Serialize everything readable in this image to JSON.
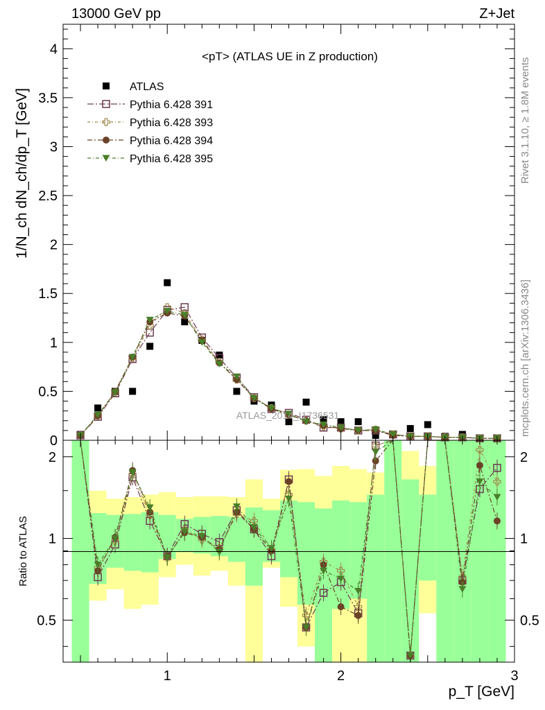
{
  "header": {
    "left": "13000 GeV pp",
    "right": "Z+Jet"
  },
  "side": {
    "rivet": "Rivet 3.1.10, ≥ 1.8M events",
    "source": "mcplots.cern.ch [arXiv:1306.3436]"
  },
  "watermark": "ATLAS_2014_I1736531",
  "chart_data": {
    "type": "scatter",
    "title": "<pT> (ATLAS UE in Z production)",
    "xlabel": "p_T [GeV]",
    "ylabel": "1/N_ch dN_ch/dp_T [GeV]",
    "ratio_ylabel": "Ratio to ATLAS",
    "xlim": [
      0.4,
      3.0
    ],
    "ylim": [
      0,
      4.25
    ],
    "ratio_ylim": [
      0.35,
      2.3
    ],
    "grid": false,
    "legend": "top-left",
    "x_ticks": [
      "1",
      "2",
      "3"
    ],
    "y_ticks": [
      "0",
      "0.5",
      "1",
      "1.5",
      "2",
      "2.5",
      "3",
      "3.5",
      "4"
    ],
    "ratio_ticks": [
      "0.5",
      "1",
      "2"
    ],
    "x": [
      0.5,
      0.6,
      0.7,
      0.8,
      0.9,
      1.0,
      1.1,
      1.2,
      1.3,
      1.4,
      1.5,
      1.6,
      1.7,
      1.8,
      1.9,
      2.0,
      2.1,
      2.2,
      2.3,
      2.4,
      2.5,
      2.6,
      2.7,
      2.8,
      2.9
    ],
    "series": [
      {
        "name": "ATLAS",
        "color": "#000000",
        "marker": "square-filled",
        "values": [
          0.06,
          0.33,
          0.5,
          0.5,
          0.96,
          1.61,
          1.21,
          1.02,
          0.87,
          0.5,
          0.4,
          0.36,
          0.19,
          0.39,
          0.21,
          0.19,
          0.19,
          0.05,
          0.06,
          0.12,
          0.16,
          0.04,
          0.06,
          0.02,
          0.02
        ]
      },
      {
        "name": "Pythia 6.428 391",
        "color": "#6b3a4f",
        "marker": "square-open",
        "values": [
          0.05,
          0.24,
          0.48,
          0.83,
          1.1,
          1.33,
          1.36,
          1.05,
          0.84,
          0.64,
          0.44,
          0.32,
          0.28,
          0.21,
          0.13,
          0.13,
          0.1,
          0.1,
          0.06,
          0.04,
          0.04,
          0.03,
          0.03,
          0.02,
          0.02
        ],
        "ratio": [
          2.6,
          0.72,
          0.95,
          1.68,
          1.16,
          0.86,
          1.13,
          1.04,
          0.97,
          1.27,
          1.08,
          0.86,
          1.65,
          0.47,
          0.63,
          0.69,
          0.53,
          2.2,
          2.6,
          0.37,
          2.6,
          2.6,
          0.7,
          1.52,
          1.82
        ]
      },
      {
        "name": "Pythia 6.428 393",
        "color": "#a08a4f",
        "marker": "cross-open",
        "values": [
          0.05,
          0.25,
          0.49,
          0.84,
          1.17,
          1.36,
          1.3,
          1.03,
          0.8,
          0.62,
          0.43,
          0.33,
          0.26,
          0.2,
          0.14,
          0.12,
          0.1,
          0.11,
          0.06,
          0.04,
          0.04,
          0.03,
          0.03,
          0.02,
          0.02
        ],
        "ratio": [
          2.6,
          0.78,
          0.98,
          1.72,
          1.22,
          0.85,
          1.08,
          0.99,
          0.92,
          1.23,
          1.16,
          0.91,
          1.45,
          0.52,
          0.82,
          0.76,
          0.56,
          2.2,
          2.6,
          0.37,
          2.6,
          2.6,
          0.72,
          2.12,
          1.62
        ]
      },
      {
        "name": "Pythia 6.428 394",
        "color": "#6b4226",
        "marker": "circle-filled",
        "values": [
          0.05,
          0.25,
          0.5,
          0.85,
          1.21,
          1.3,
          1.27,
          1.02,
          0.79,
          0.62,
          0.43,
          0.32,
          0.26,
          0.2,
          0.15,
          0.12,
          0.1,
          0.1,
          0.05,
          0.04,
          0.04,
          0.03,
          0.03,
          0.02,
          0.02
        ],
        "ratio": [
          2.6,
          0.76,
          1.01,
          1.78,
          1.25,
          0.86,
          1.05,
          1.01,
          0.91,
          1.25,
          1.08,
          0.9,
          1.62,
          0.47,
          0.8,
          0.56,
          0.52,
          1.93,
          2.6,
          0.37,
          2.6,
          2.6,
          0.69,
          1.86,
          1.16
        ]
      },
      {
        "name": "Pythia 6.428 395",
        "color": "#4a7f2a",
        "marker": "triangle-down-filled",
        "values": [
          0.05,
          0.26,
          0.49,
          0.85,
          1.23,
          1.32,
          1.28,
          1.0,
          0.78,
          0.65,
          0.43,
          0.33,
          0.27,
          0.19,
          0.16,
          0.13,
          0.1,
          0.11,
          0.06,
          0.04,
          0.04,
          0.03,
          0.03,
          0.02,
          0.02
        ],
        "ratio": [
          2.6,
          0.8,
          1.0,
          1.75,
          1.3,
          0.85,
          1.06,
          1.02,
          0.89,
          1.31,
          1.1,
          0.92,
          1.4,
          0.47,
          0.76,
          0.71,
          0.64,
          2.08,
          2.6,
          0.37,
          2.6,
          2.6,
          0.65,
          1.62,
          1.42
        ]
      }
    ],
    "ratio_bands": {
      "bin_edges": [
        0.45,
        0.55,
        0.65,
        0.75,
        0.85,
        0.95,
        1.05,
        1.15,
        1.25,
        1.35,
        1.45,
        1.55,
        1.65,
        1.75,
        1.85,
        1.95,
        2.05,
        2.15,
        2.25,
        2.35,
        2.45,
        2.55,
        2.65,
        2.75,
        2.85,
        2.95
      ],
      "yellow_lo": [
        0.35,
        0.59,
        0.65,
        0.55,
        0.57,
        0.72,
        0.8,
        0.73,
        0.76,
        0.67,
        0.35,
        0.78,
        0.56,
        0.4,
        0.35,
        0.35,
        0.35,
        0.35,
        0.35,
        0.35,
        0.53,
        0.35,
        0.35,
        0.35,
        0.35
      ],
      "yellow_hi": [
        2.3,
        1.5,
        1.4,
        1.42,
        1.45,
        1.48,
        1.42,
        1.43,
        1.43,
        1.42,
        1.65,
        1.4,
        1.79,
        1.8,
        1.7,
        1.85,
        1.8,
        1.75,
        2.3,
        2.1,
        1.85,
        1.85,
        2.3,
        2.3,
        2.3
      ],
      "green_lo": [
        0.35,
        0.68,
        0.78,
        0.76,
        0.75,
        0.84,
        0.89,
        0.88,
        0.86,
        0.82,
        0.67,
        0.82,
        0.72,
        0.57,
        0.35,
        0.55,
        0.6,
        0.35,
        0.35,
        0.35,
        0.7,
        0.35,
        0.35,
        0.35,
        0.35
      ],
      "green_hi": [
        2.3,
        1.24,
        1.22,
        1.23,
        1.25,
        1.22,
        1.18,
        1.2,
        1.21,
        1.2,
        1.3,
        1.27,
        1.38,
        1.36,
        1.29,
        1.38,
        1.36,
        1.45,
        2.3,
        1.65,
        1.45,
        2.3,
        2.3,
        2.3,
        2.3
      ]
    }
  }
}
